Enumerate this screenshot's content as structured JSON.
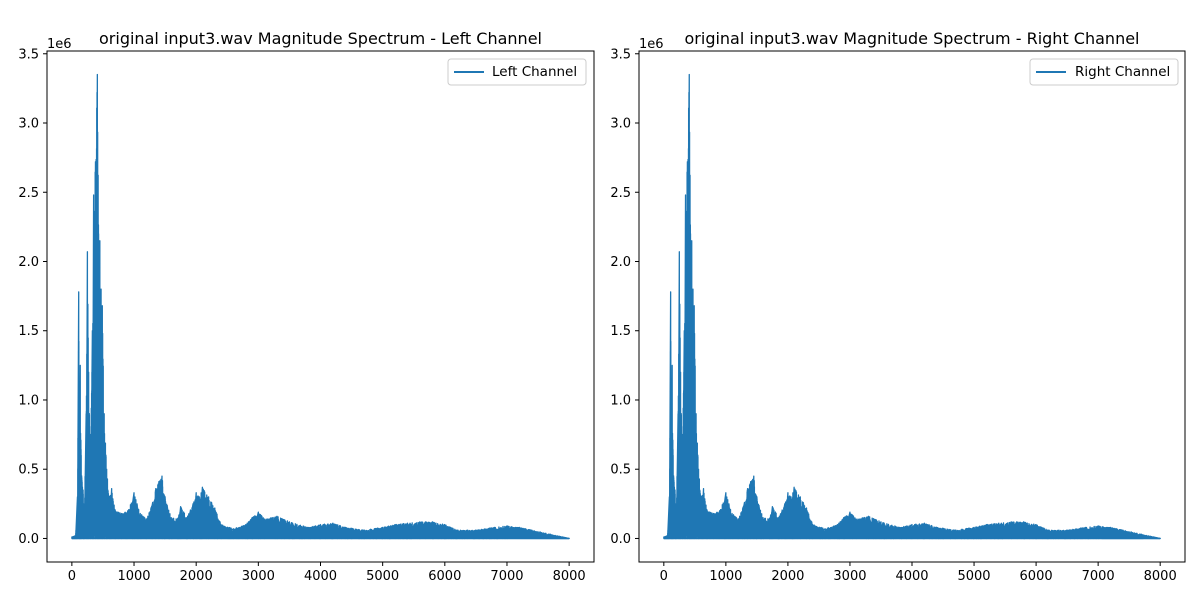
{
  "chart_data": [
    {
      "type": "line",
      "title": "original input3.wav Magnitude Spectrum - Left Channel",
      "xlabel": "",
      "ylabel": "",
      "y_scale_label": "1e6",
      "xlim": [
        -400,
        8400
      ],
      "ylim": [
        -0.17,
        3.52
      ],
      "xticks": [
        0,
        1000,
        2000,
        3000,
        4000,
        5000,
        6000,
        7000,
        8000
      ],
      "xtick_labels": [
        "0",
        "1000",
        "2000",
        "3000",
        "4000",
        "5000",
        "6000",
        "7000",
        "8000"
      ],
      "yticks": [
        0.0,
        0.5,
        1.0,
        1.5,
        2.0,
        2.5,
        3.0,
        3.5
      ],
      "ytick_labels": [
        "0.0",
        "0.5",
        "1.0",
        "1.5",
        "2.0",
        "2.5",
        "3.0",
        "3.5"
      ],
      "grid": false,
      "legend_position": "top-right",
      "series": [
        {
          "name": "Left Channel",
          "color": "#1f77b4",
          "envelope": [
            [
              0,
              0.01
            ],
            [
              60,
              0.02
            ],
            [
              90,
              0.3
            ],
            [
              110,
              1.78
            ],
            [
              120,
              0.9
            ],
            [
              135,
              1.25
            ],
            [
              150,
              0.6
            ],
            [
              180,
              0.35
            ],
            [
              200,
              0.15
            ],
            [
              230,
              0.9
            ],
            [
              250,
              2.07
            ],
            [
              270,
              1.2
            ],
            [
              300,
              0.7
            ],
            [
              330,
              1.5
            ],
            [
              350,
              2.48
            ],
            [
              380,
              2.72
            ],
            [
              410,
              3.35
            ],
            [
              430,
              2.2
            ],
            [
              450,
              2.15
            ],
            [
              470,
              1.8
            ],
            [
              490,
              1.68
            ],
            [
              520,
              0.9
            ],
            [
              560,
              0.5
            ],
            [
              600,
              0.3
            ],
            [
              640,
              0.36
            ],
            [
              700,
              0.2
            ],
            [
              800,
              0.18
            ],
            [
              900,
              0.2
            ],
            [
              1000,
              0.33
            ],
            [
              1050,
              0.25
            ],
            [
              1100,
              0.18
            ],
            [
              1200,
              0.14
            ],
            [
              1300,
              0.26
            ],
            [
              1350,
              0.36
            ],
            [
              1400,
              0.41
            ],
            [
              1450,
              0.45
            ],
            [
              1500,
              0.3
            ],
            [
              1600,
              0.15
            ],
            [
              1700,
              0.14
            ],
            [
              1750,
              0.23
            ],
            [
              1850,
              0.15
            ],
            [
              1950,
              0.25
            ],
            [
              2000,
              0.33
            ],
            [
              2050,
              0.3
            ],
            [
              2100,
              0.37
            ],
            [
              2200,
              0.3
            ],
            [
              2300,
              0.22
            ],
            [
              2400,
              0.1
            ],
            [
              2600,
              0.07
            ],
            [
              2800,
              0.1
            ],
            [
              2900,
              0.15
            ],
            [
              3000,
              0.19
            ],
            [
              3100,
              0.14
            ],
            [
              3300,
              0.16
            ],
            [
              3500,
              0.12
            ],
            [
              3800,
              0.08
            ],
            [
              4000,
              0.1
            ],
            [
              4200,
              0.11
            ],
            [
              4400,
              0.08
            ],
            [
              4700,
              0.06
            ],
            [
              5000,
              0.08
            ],
            [
              5200,
              0.1
            ],
            [
              5400,
              0.11
            ],
            [
              5600,
              0.12
            ],
            [
              5800,
              0.12
            ],
            [
              6000,
              0.1
            ],
            [
              6200,
              0.06
            ],
            [
              6500,
              0.06
            ],
            [
              6800,
              0.08
            ],
            [
              7000,
              0.09
            ],
            [
              7200,
              0.08
            ],
            [
              7400,
              0.06
            ],
            [
              7700,
              0.03
            ],
            [
              7900,
              0.01
            ],
            [
              8000,
              0.0
            ]
          ]
        }
      ]
    },
    {
      "type": "line",
      "title": "original input3.wav Magnitude Spectrum - Right Channel",
      "xlabel": "",
      "ylabel": "",
      "y_scale_label": "1e6",
      "xlim": [
        -400,
        8400
      ],
      "ylim": [
        -0.17,
        3.52
      ],
      "xticks": [
        0,
        1000,
        2000,
        3000,
        4000,
        5000,
        6000,
        7000,
        8000
      ],
      "xtick_labels": [
        "0",
        "1000",
        "2000",
        "3000",
        "4000",
        "5000",
        "6000",
        "7000",
        "8000"
      ],
      "yticks": [
        0.0,
        0.5,
        1.0,
        1.5,
        2.0,
        2.5,
        3.0,
        3.5
      ],
      "ytick_labels": [
        "0.0",
        "0.5",
        "1.0",
        "1.5",
        "2.0",
        "2.5",
        "3.0",
        "3.5"
      ],
      "grid": false,
      "legend_position": "top-right",
      "series": [
        {
          "name": "Right Channel",
          "color": "#1f77b4",
          "envelope": [
            [
              0,
              0.01
            ],
            [
              60,
              0.02
            ],
            [
              90,
              0.3
            ],
            [
              110,
              1.78
            ],
            [
              120,
              0.9
            ],
            [
              135,
              1.25
            ],
            [
              150,
              0.6
            ],
            [
              180,
              0.35
            ],
            [
              200,
              0.15
            ],
            [
              230,
              0.9
            ],
            [
              250,
              2.07
            ],
            [
              270,
              1.2
            ],
            [
              300,
              0.7
            ],
            [
              330,
              1.5
            ],
            [
              350,
              2.48
            ],
            [
              380,
              2.72
            ],
            [
              410,
              3.35
            ],
            [
              430,
              2.2
            ],
            [
              450,
              2.15
            ],
            [
              470,
              1.8
            ],
            [
              490,
              1.68
            ],
            [
              520,
              0.9
            ],
            [
              560,
              0.5
            ],
            [
              600,
              0.3
            ],
            [
              640,
              0.36
            ],
            [
              700,
              0.2
            ],
            [
              800,
              0.18
            ],
            [
              900,
              0.2
            ],
            [
              1000,
              0.33
            ],
            [
              1050,
              0.25
            ],
            [
              1100,
              0.18
            ],
            [
              1200,
              0.14
            ],
            [
              1300,
              0.26
            ],
            [
              1350,
              0.36
            ],
            [
              1400,
              0.41
            ],
            [
              1450,
              0.45
            ],
            [
              1500,
              0.3
            ],
            [
              1600,
              0.15
            ],
            [
              1700,
              0.14
            ],
            [
              1750,
              0.23
            ],
            [
              1850,
              0.15
            ],
            [
              1950,
              0.25
            ],
            [
              2000,
              0.33
            ],
            [
              2050,
              0.3
            ],
            [
              2100,
              0.37
            ],
            [
              2200,
              0.3
            ],
            [
              2300,
              0.22
            ],
            [
              2400,
              0.1
            ],
            [
              2600,
              0.07
            ],
            [
              2800,
              0.1
            ],
            [
              2900,
              0.15
            ],
            [
              3000,
              0.19
            ],
            [
              3100,
              0.14
            ],
            [
              3300,
              0.16
            ],
            [
              3500,
              0.12
            ],
            [
              3800,
              0.08
            ],
            [
              4000,
              0.1
            ],
            [
              4200,
              0.11
            ],
            [
              4400,
              0.08
            ],
            [
              4700,
              0.06
            ],
            [
              5000,
              0.08
            ],
            [
              5200,
              0.1
            ],
            [
              5400,
              0.11
            ],
            [
              5600,
              0.12
            ],
            [
              5800,
              0.12
            ],
            [
              6000,
              0.1
            ],
            [
              6200,
              0.06
            ],
            [
              6500,
              0.06
            ],
            [
              6800,
              0.08
            ],
            [
              7000,
              0.09
            ],
            [
              7200,
              0.08
            ],
            [
              7400,
              0.06
            ],
            [
              7700,
              0.03
            ],
            [
              7900,
              0.01
            ],
            [
              8000,
              0.0
            ]
          ]
        }
      ]
    }
  ]
}
